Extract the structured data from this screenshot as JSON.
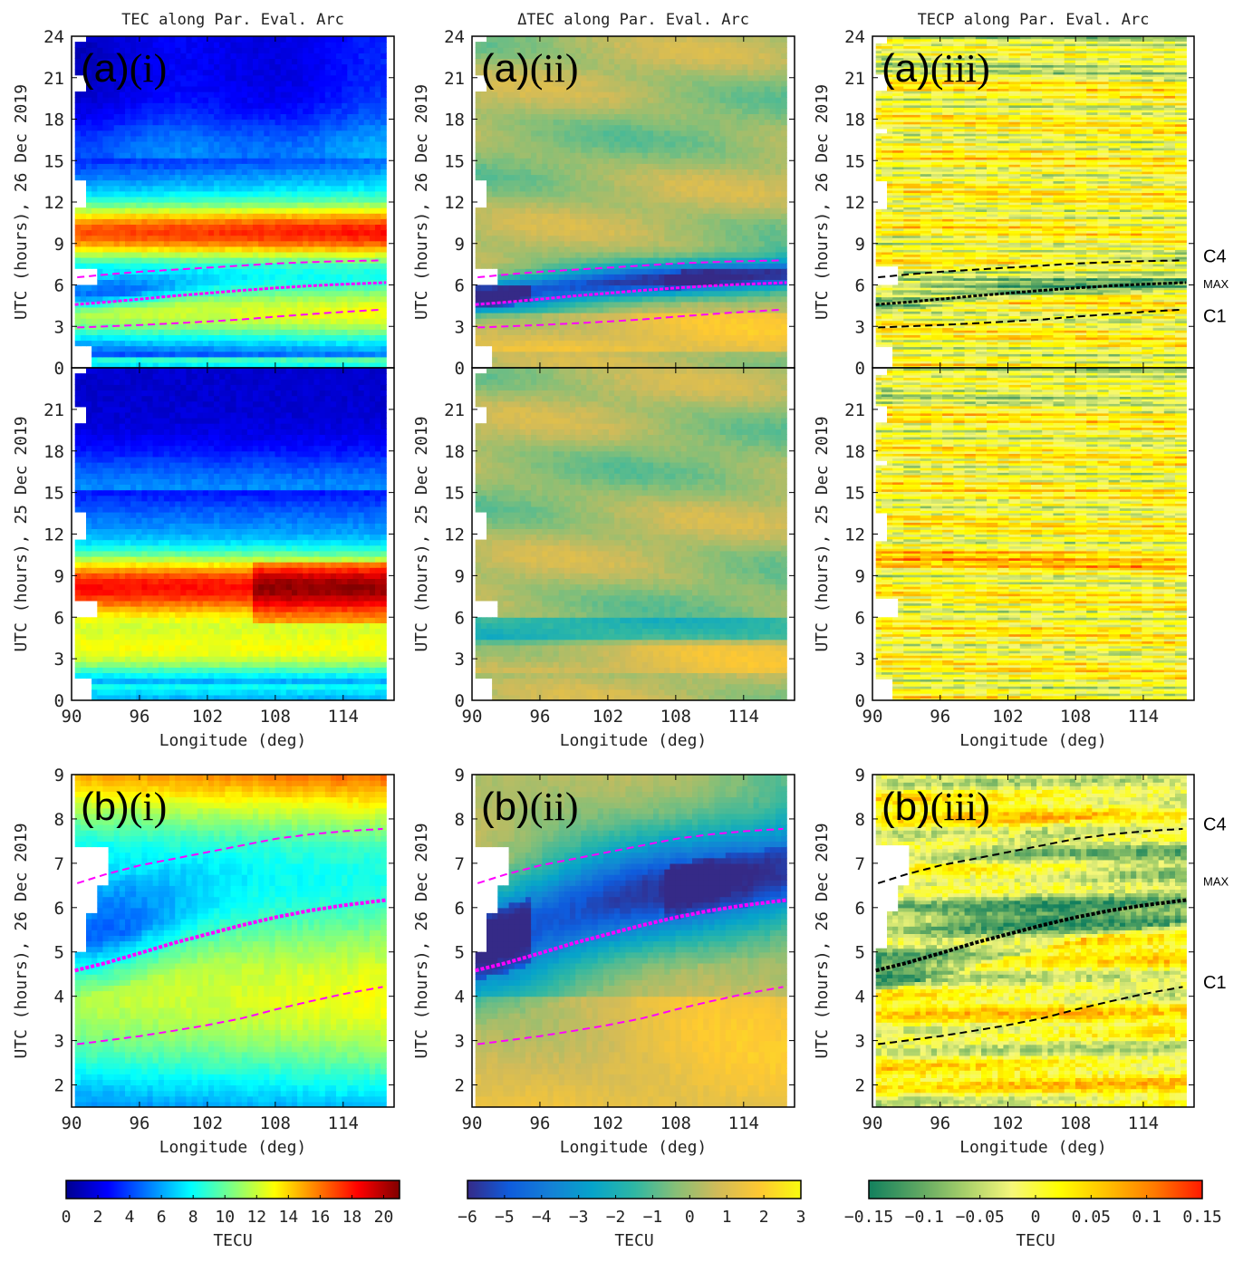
{
  "chart_data": {
    "type": "heatmap",
    "figure_description": "Nine-panel ionospheric TEC figure: columns are TEC, ΔTEC and TECP along parallel evaluation arc; rows (a) 26 Dec 2019 & 25 Dec 2019 full-day, (b) 26 Dec 2019 zoom 1.5–9 UTC",
    "columns": [
      {
        "key": "tec",
        "title": "TEC along Par. Eval. Arc",
        "colormap": "jet",
        "colorbar": {
          "range": [
            0,
            21
          ],
          "ticks": [
            0,
            2,
            4,
            6,
            8,
            10,
            12,
            14,
            16,
            18,
            20
          ],
          "tick_labels": [
            "0",
            "2",
            "4",
            "6",
            "8",
            "10",
            "12",
            "14",
            "16",
            "18",
            "20"
          ],
          "label": "TECU",
          "stops": [
            "#00008f",
            "#0000ff",
            "#0080ff",
            "#00ffff",
            "#80ff80",
            "#ffff00",
            "#ff8000",
            "#ff0000",
            "#800000"
          ]
        },
        "curve_color": "#ff00ff"
      },
      {
        "key": "dtec",
        "title": "ΔTEC along Par. Eval. Arc",
        "colormap": "parula",
        "colorbar": {
          "range": [
            -6,
            3
          ],
          "ticks": [
            -6,
            -5,
            -4,
            -3,
            -2,
            -1,
            0,
            1,
            2,
            3
          ],
          "tick_labels": [
            "−6",
            "−5",
            "−4",
            "−3",
            "−2",
            "−1",
            "0",
            "1",
            "2",
            "3"
          ],
          "label": "TECU",
          "stops": [
            "#352a87",
            "#0f5cdd",
            "#1481d6",
            "#06a4ca",
            "#2eb7a4",
            "#87bf77",
            "#d1bb59",
            "#fec832",
            "#f9fb0e"
          ]
        },
        "curve_color": "#ff00ff"
      },
      {
        "key": "tecp",
        "title": "TECP along Par. Eval. Arc",
        "colormap": "green-yellow-red",
        "colorbar": {
          "range": [
            -0.15,
            0.15
          ],
          "ticks": [
            -0.15,
            -0.1,
            -0.05,
            0,
            0.05,
            0.1,
            0.15
          ],
          "tick_labels": [
            "−0.15",
            "−0.1",
            "−0.05",
            "0",
            "0.05",
            "0.1",
            "0.15"
          ],
          "label": "TECU",
          "stops": [
            "#12805e",
            "#5aa562",
            "#a6cf6a",
            "#f5f77a",
            "#ffff00",
            "#ffc000",
            "#ff7a00",
            "#ff1a00"
          ]
        },
        "curve_color": "#000000"
      }
    ],
    "rows": [
      {
        "key": "a_top",
        "date": "26 Dec 2019",
        "ylabel": "UTC (hours), 26 Dec 2019",
        "ylim": [
          0,
          24
        ],
        "yticks": [
          0,
          3,
          6,
          9,
          12,
          15,
          18,
          21,
          24
        ],
        "panel_labels": [
          "(a)(i)",
          "(a)(ii)",
          "(a)(iii)"
        ],
        "show_curves": true,
        "show_xaxis": false
      },
      {
        "key": "a_bottom",
        "date": "25 Dec 2019",
        "ylabel": "UTC (hours), 25 Dec 2019",
        "ylim": [
          0,
          24
        ],
        "yticks": [
          0,
          3,
          6,
          9,
          12,
          15,
          18,
          21
        ],
        "panel_labels": [
          "",
          "",
          ""
        ],
        "show_curves": false,
        "show_xaxis": true
      },
      {
        "key": "b",
        "date": "26 Dec 2019",
        "ylabel": "UTC (hours), 26 Dec 2019",
        "ylim": [
          1.5,
          9
        ],
        "yticks": [
          2,
          3,
          4,
          5,
          6,
          7,
          8,
          9
        ],
        "panel_labels": [
          "(b)(i)",
          "(b)(ii)",
          "(b)(iii)"
        ],
        "show_curves": true,
        "show_xaxis": true
      }
    ],
    "xaxis": {
      "label": "Longitude (deg)",
      "xlim": [
        90,
        118.5
      ],
      "ticks": [
        90,
        96,
        102,
        108,
        114
      ],
      "data_extent": [
        90.3,
        117.8
      ]
    },
    "curves": [
      {
        "name": "C4",
        "style": "dashed",
        "x": [
          90.5,
          93,
          96,
          99,
          102,
          105,
          108,
          111,
          114,
          117.7
        ],
        "y": [
          6.55,
          6.75,
          6.95,
          7.1,
          7.25,
          7.4,
          7.55,
          7.65,
          7.72,
          7.78
        ]
      },
      {
        "name": "MAX",
        "style": "dotted-markers",
        "x": [
          90.3,
          93,
          96,
          99,
          102,
          105,
          108,
          111,
          114,
          117.8
        ],
        "y": [
          4.58,
          4.75,
          4.97,
          5.2,
          5.4,
          5.6,
          5.78,
          5.93,
          6.05,
          6.17
        ]
      },
      {
        "name": "C1",
        "style": "dashed",
        "x": [
          90.5,
          93,
          96,
          99,
          102,
          105,
          108,
          111,
          114,
          117.7
        ],
        "y": [
          2.92,
          3.0,
          3.1,
          3.22,
          3.35,
          3.5,
          3.7,
          3.88,
          4.05,
          4.22
        ]
      }
    ],
    "curve_labels": [
      "C4",
      "MAX",
      "C1"
    ],
    "tec_features": {
      "26 Dec 2019": "Peak ~16–19 TECU between 8–11 UTC; depressed band 5–6 UTC near 90–96°E (~10–11 TECU); night minimum ~1–3 TECU after 17 UTC",
      "25 Dec 2019": "Peak ~18–20 TECU between 6–10 UTC, maximum near 110–116°E; night minimum ~1–3 TECU 19–24 UTC"
    },
    "dtec_features": {
      "26 Dec 2019": "Strong negative anomaly (−4 to −6 TECU) along MAX curve, 4.5–7 UTC, strongest near 90–94°E and 108–114°E",
      "25 Dec 2019": "Values mostly within −2 to +2 TECU"
    }
  },
  "x_label": "Longitude (deg)",
  "colorbar_unit": "TECU"
}
